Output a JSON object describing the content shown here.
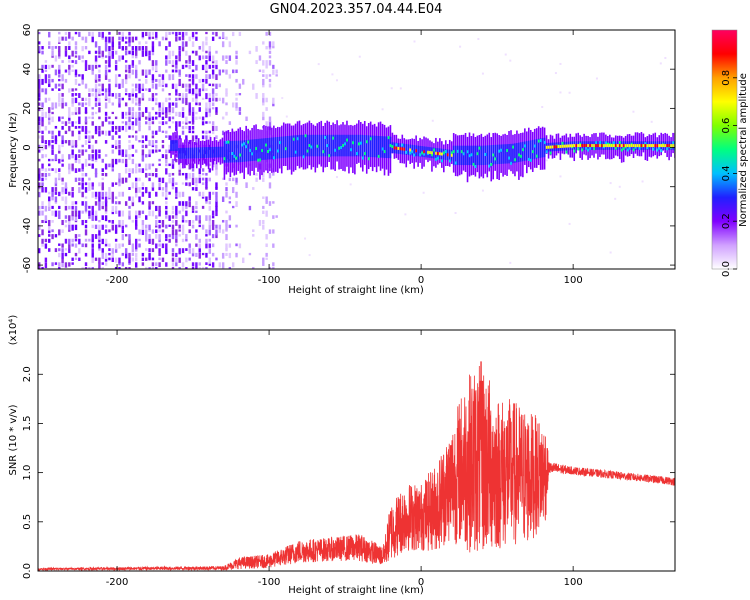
{
  "title": "GN04.2023.357.04.44.E04",
  "chart_data": [
    {
      "type": "heatmap",
      "name": "spectrogram",
      "xlabel": "Height of straight line (km)",
      "ylabel": "Frequency (Hz)",
      "xlim": [
        -252,
        167
      ],
      "ylim": [
        -62,
        60
      ],
      "x_ticks": [
        -200,
        -100,
        0,
        100
      ],
      "x_tick_labels": [
        "-200",
        "-100",
        "0",
        "100"
      ],
      "y_ticks": [
        -60,
        -40,
        -20,
        0,
        20,
        40,
        60
      ],
      "y_tick_labels": [
        "-60",
        "-40",
        "-20",
        "0",
        "20",
        "40",
        "60"
      ],
      "colorbar": {
        "label": "Normalized spectral amplitude",
        "range": [
          0,
          1
        ],
        "ticks": [
          0.0,
          0.2,
          0.4,
          0.6,
          0.8
        ],
        "tick_labels": [
          "0.0",
          "0.2",
          "0.4",
          "0.6",
          "0.8"
        ],
        "colormap": [
          "#ffffff",
          "#d0a0ff",
          "#8000ff",
          "#2020ff",
          "#00c0ff",
          "#00ff80",
          "#80ff00",
          "#ffff00",
          "#ffa000",
          "#ff0000",
          "#ff0060"
        ]
      },
      "ridge_center_hz": [
        {
          "x": -160,
          "f": -3
        },
        {
          "x": -120,
          "f": -2
        },
        {
          "x": -80,
          "f": 1
        },
        {
          "x": -40,
          "f": 1
        },
        {
          "x": -20,
          "f": 0
        },
        {
          "x": 0,
          "f": -2
        },
        {
          "x": 20,
          "f": -4
        },
        {
          "x": 40,
          "f": -4
        },
        {
          "x": 60,
          "f": -3
        },
        {
          "x": 80,
          "f": 0
        },
        {
          "x": 100,
          "f": 1
        },
        {
          "x": 167,
          "f": 1
        }
      ]
    },
    {
      "type": "line",
      "name": "snr",
      "xlabel": "Height of straight line (km)",
      "ylabel": "SNR (10 * v/v)",
      "y_multiplier": "(x10⁴)",
      "xlim": [
        -252,
        167
      ],
      "ylim": [
        0,
        2.45
      ],
      "x_ticks": [
        -200,
        -100,
        0,
        100
      ],
      "x_tick_labels": [
        "-200",
        "-100",
        "0",
        "100"
      ],
      "y_ticks": [
        0.0,
        0.5,
        1.0,
        1.5,
        2.0
      ],
      "y_tick_labels": [
        "0.0",
        "0.5",
        "1.0",
        "1.5",
        "2.0"
      ],
      "color": "#ee3333",
      "envelope": [
        {
          "x": -252,
          "mean": 0.02,
          "spread": 0.01
        },
        {
          "x": -130,
          "mean": 0.03,
          "spread": 0.02
        },
        {
          "x": -120,
          "mean": 0.08,
          "spread": 0.06
        },
        {
          "x": -100,
          "mean": 0.1,
          "spread": 0.07
        },
        {
          "x": -80,
          "mean": 0.2,
          "spread": 0.12
        },
        {
          "x": -60,
          "mean": 0.22,
          "spread": 0.12
        },
        {
          "x": -40,
          "mean": 0.24,
          "spread": 0.14
        },
        {
          "x": -25,
          "mean": 0.15,
          "spread": 0.1
        },
        {
          "x": -20,
          "mean": 0.4,
          "spread": 0.3
        },
        {
          "x": -10,
          "mean": 0.55,
          "spread": 0.35
        },
        {
          "x": 0,
          "mean": 0.55,
          "spread": 0.35
        },
        {
          "x": 10,
          "mean": 0.65,
          "spread": 0.45
        },
        {
          "x": 20,
          "mean": 0.9,
          "spread": 0.6
        },
        {
          "x": 30,
          "mean": 1.1,
          "spread": 0.9
        },
        {
          "x": 40,
          "mean": 1.15,
          "spread": 1.0
        },
        {
          "x": 50,
          "mean": 1.0,
          "spread": 0.8
        },
        {
          "x": 60,
          "mean": 1.0,
          "spread": 0.75
        },
        {
          "x": 70,
          "mean": 0.95,
          "spread": 0.7
        },
        {
          "x": 82,
          "mean": 1.0,
          "spread": 0.5
        },
        {
          "x": 84,
          "mean": 1.05,
          "spread": 0.06
        },
        {
          "x": 100,
          "mean": 1.02,
          "spread": 0.04
        },
        {
          "x": 130,
          "mean": 0.97,
          "spread": 0.04
        },
        {
          "x": 167,
          "mean": 0.91,
          "spread": 0.04
        }
      ]
    }
  ]
}
